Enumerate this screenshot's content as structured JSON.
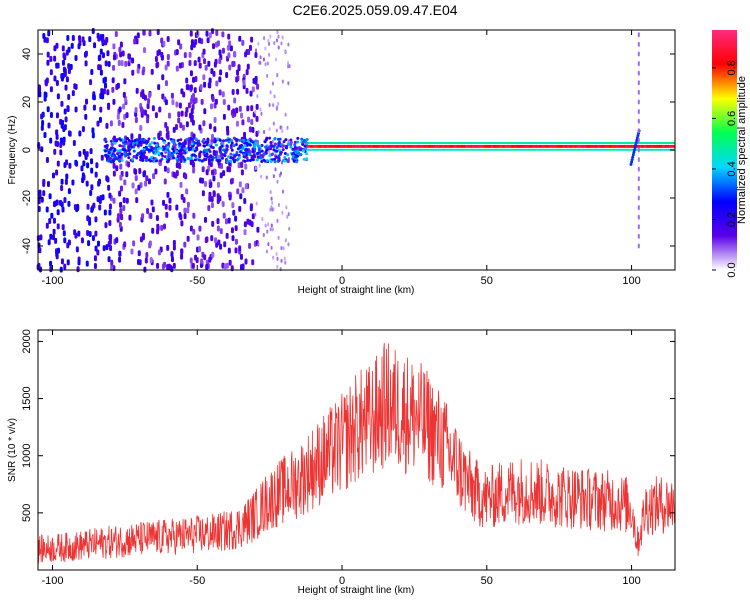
{
  "title": "C2E6.2025.059.09.47.E04",
  "chart_data": [
    {
      "type": "heatmap",
      "xlabel": "Height of straight line (km)",
      "ylabel": "Frequency (Hz)",
      "xlim": [
        -105,
        115
      ],
      "ylim": [
        -50,
        50
      ],
      "xticks": [
        -100,
        -50,
        0,
        50,
        100
      ],
      "yticks": [
        -40,
        -20,
        0,
        20,
        40
      ],
      "colorbar": {
        "label": "Normalized spectral amplitude",
        "range": [
          0,
          0.95
        ],
        "ticks": [
          "0.0",
          "0.2",
          "0.4",
          "0.6",
          "0.8"
        ],
        "tick_values": [
          0,
          0.2,
          0.4,
          0.6,
          0.8
        ],
        "colors": [
          "#ffffff",
          "#5a00e6",
          "#0000ff",
          "#00d8ff",
          "#00ff50",
          "#ffff00",
          "#ff0000",
          "#ff2a80"
        ]
      },
      "features": [
        {
          "description_value": "strong narrowband line",
          "freq": 1.5,
          "x_start": -12,
          "x_end": 115,
          "amplitude": 0.9
        },
        {
          "description_value": "broadband cluster",
          "freq": 0,
          "x_start": -82,
          "x_end": -12,
          "freq_spread": 5,
          "amplitude": 0.35
        }
      ]
    },
    {
      "type": "line",
      "xlabel": "Height of straight line (km)",
      "ylabel": "SNR (10 * v/v)",
      "xlim": [
        -105,
        115
      ],
      "ylim": [
        0,
        2100
      ],
      "xticks": [
        -100,
        -50,
        0,
        50,
        100
      ],
      "yticks": [
        500,
        1000,
        1500,
        2000
      ],
      "color": "#ee3333",
      "series": [
        {
          "x": [
            -105,
            -95,
            -85,
            -75,
            -65,
            -55,
            -45,
            -40,
            -35,
            -30,
            -25,
            -20,
            -15,
            -10,
            -5,
            0,
            5,
            10,
            15,
            20,
            25,
            30,
            35,
            40,
            45,
            50,
            55,
            60,
            65,
            70,
            75,
            80,
            85,
            90,
            95,
            100,
            102,
            105,
            110,
            115
          ],
          "y": [
            180,
            200,
            230,
            260,
            280,
            300,
            320,
            340,
            380,
            480,
            620,
            700,
            780,
            900,
            1000,
            1100,
            1250,
            1300,
            1450,
            1400,
            1350,
            1250,
            1100,
            900,
            700,
            620,
            670,
            700,
            700,
            670,
            650,
            640,
            620,
            610,
            600,
            550,
            230,
            550,
            570,
            580
          ]
        }
      ]
    }
  ]
}
